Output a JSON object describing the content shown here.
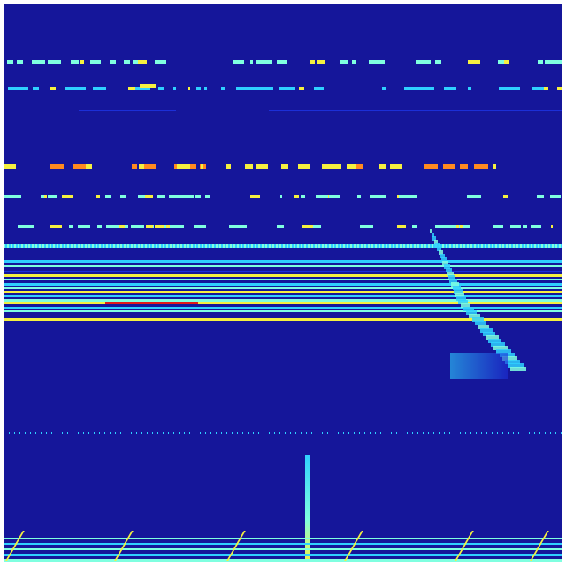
{
  "colormap": "jet",
  "colors": {
    "background": "#15169a",
    "low": "#1c2fd8",
    "mid": "#2fd0ff",
    "cyan": "#7fffe0",
    "yellow": "#f5f040",
    "orange": "#ff8a20",
    "red": "#e01818"
  }
}
